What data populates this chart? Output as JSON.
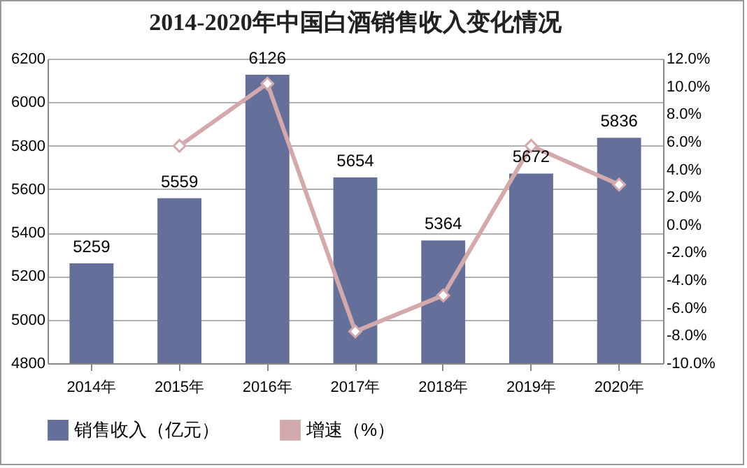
{
  "chart_data": {
    "type": "bar",
    "title": "2014-2020年中国白酒销售收入变化情况",
    "categories": [
      "2014年",
      "2015年",
      "2016年",
      "2017年",
      "2018年",
      "2019年",
      "2020年"
    ],
    "series": [
      {
        "name": "销售收入（亿元）",
        "color": "#65709a",
        "values": [
          5259,
          5559,
          6126,
          5654,
          5364,
          5672,
          5836
        ],
        "value_labels": [
          "5259",
          "5559",
          "6126",
          "5654",
          "5364",
          "5672",
          "5836"
        ]
      },
      {
        "name": "增速（%）",
        "type": "line",
        "axis": "y2",
        "color": "#d4a9ab",
        "marker": "diamond",
        "values": [
          null,
          5.7,
          10.2,
          -7.7,
          -5.1,
          5.7,
          2.9
        ]
      }
    ],
    "ylim": [
      4800,
      6200
    ],
    "yticks": [
      4800,
      5000,
      5200,
      5400,
      5600,
      5800,
      6000,
      6200
    ],
    "y2lim": [
      -10,
      12
    ],
    "y2ticks": [
      {
        "value": -10,
        "label": "-10.0%"
      },
      {
        "value": -8,
        "label": "-8.0%"
      },
      {
        "value": -6,
        "label": "-6.0%"
      },
      {
        "value": -4,
        "label": "-4.0%"
      },
      {
        "value": -2,
        "label": "-2.0%"
      },
      {
        "value": 0,
        "label": "0.0%"
      },
      {
        "value": 2,
        "label": "2.0%"
      },
      {
        "value": 4,
        "label": "4.0%"
      },
      {
        "value": 6,
        "label": "6.0%"
      },
      {
        "value": 8,
        "label": "8.0%"
      },
      {
        "value": 10,
        "label": "10.0%"
      },
      {
        "value": 12,
        "label": "12.0%"
      }
    ],
    "grid": "y",
    "legend": "bottom"
  }
}
